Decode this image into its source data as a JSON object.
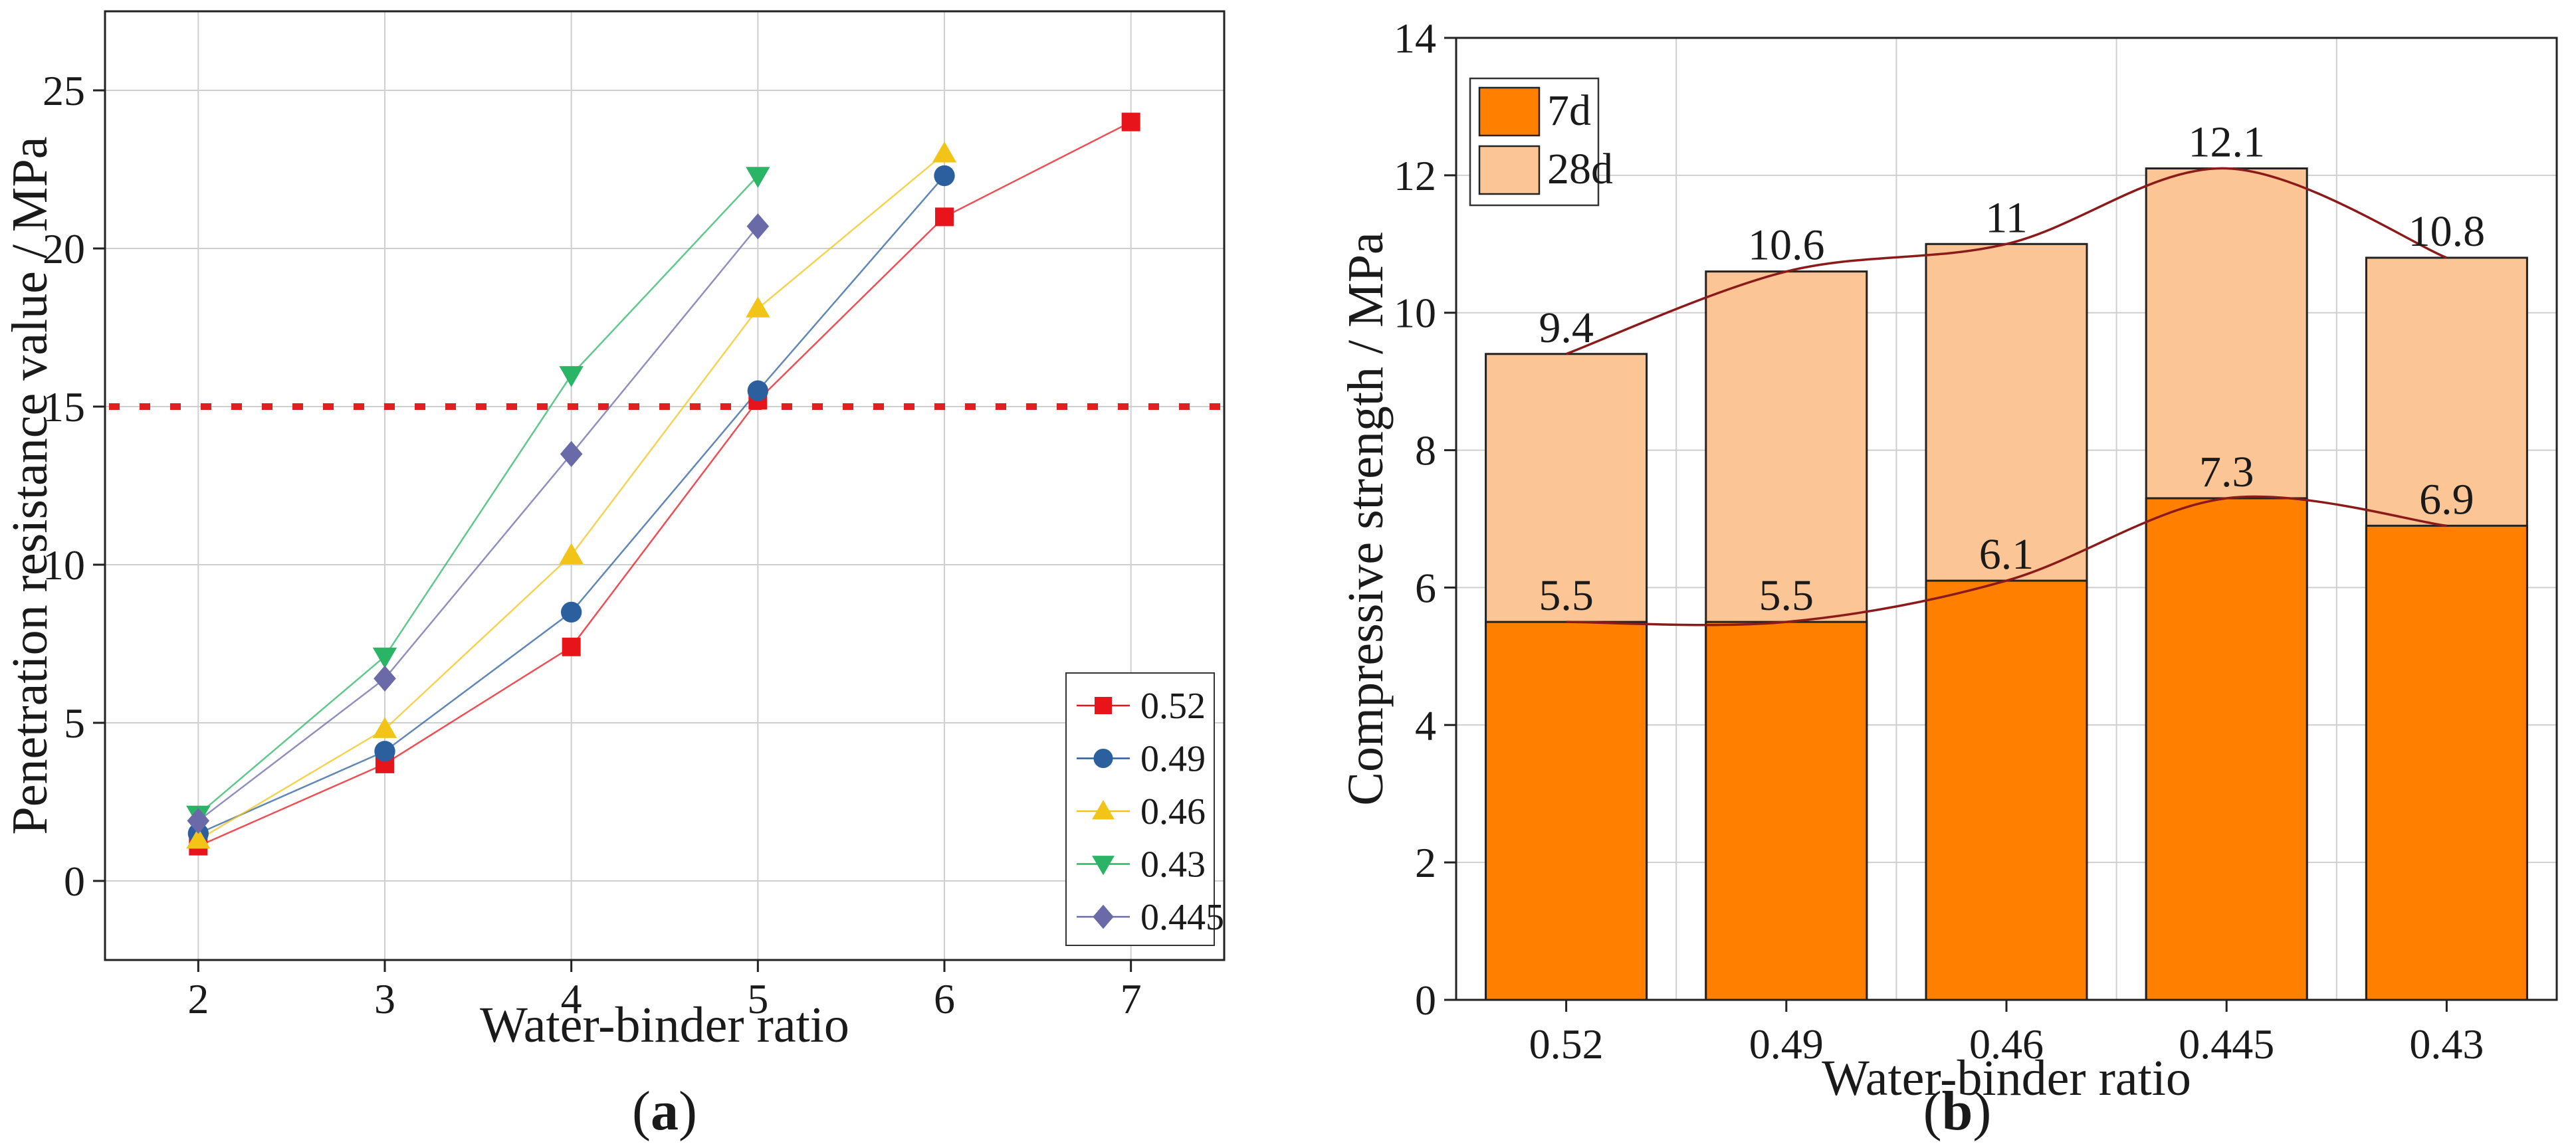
{
  "chart_data": [
    {
      "type": "line",
      "panel_label": "a",
      "xlabel": "Water-binder ratio",
      "ylabel": "Penetration resistance value / MPa",
      "xlim": [
        1.5,
        7.5
      ],
      "ylim": [
        -2.5,
        27.5
      ],
      "xticks": [
        "2",
        "3",
        "4",
        "5",
        "6",
        "7"
      ],
      "yticks": [
        "0",
        "5",
        "10",
        "15",
        "20",
        "25"
      ],
      "grid": true,
      "legend_position": "bottom-right",
      "reference_line": {
        "y": 15,
        "style": "dotted",
        "color": "#e02020"
      },
      "series": [
        {
          "name": "0.52",
          "marker": "square",
          "color": "#e8141c",
          "x": [
            2,
            3,
            4,
            5,
            6,
            7
          ],
          "y": [
            1.1,
            3.7,
            7.4,
            15.2,
            21.0,
            24.0
          ]
        },
        {
          "name": "0.49",
          "marker": "circle",
          "color": "#2c5f9e",
          "x": [
            2,
            3,
            4,
            5,
            6
          ],
          "y": [
            1.5,
            4.1,
            8.5,
            15.5,
            22.3
          ]
        },
        {
          "name": "0.46",
          "marker": "triangle-up",
          "color": "#f2c418",
          "x": [
            2,
            3,
            4,
            5,
            6
          ],
          "y": [
            1.3,
            4.8,
            10.3,
            18.1,
            23.0
          ]
        },
        {
          "name": "0.43",
          "marker": "triangle-down",
          "color": "#2ab566",
          "x": [
            2,
            3,
            4,
            5
          ],
          "y": [
            2.1,
            7.1,
            16.0,
            22.3
          ]
        },
        {
          "name": "0.445",
          "marker": "diamond",
          "color": "#6b6aa8",
          "x": [
            2,
            3,
            4,
            5
          ],
          "y": [
            1.9,
            6.4,
            13.5,
            20.7
          ]
        }
      ]
    },
    {
      "type": "bar",
      "panel_label": "b",
      "xlabel": "Water-binder ratio",
      "ylabel": "Compressive strength / MPa",
      "ylim": [
        0,
        14
      ],
      "yticks": [
        "0",
        "2",
        "4",
        "6",
        "8",
        "10",
        "12",
        "14"
      ],
      "categories": [
        "0.52",
        "0.49",
        "0.46",
        "0.445",
        "0.43"
      ],
      "legend_position": "top-left",
      "grid": true,
      "series": [
        {
          "name": "7d",
          "color": "#ff7f00",
          "values": [
            5.5,
            5.5,
            6.1,
            7.3,
            6.9
          ],
          "labels": [
            "5.5",
            "5.5",
            "6.1",
            "7.3",
            "6.9"
          ]
        },
        {
          "name": "28d",
          "color": "#fcc595",
          "values": [
            9.4,
            10.6,
            11.0,
            12.1,
            10.8
          ],
          "labels": [
            "9.4",
            "10.6",
            "11",
            "12.1",
            "10.8"
          ]
        }
      ],
      "trend_line_color": "#8b1a1a"
    }
  ]
}
